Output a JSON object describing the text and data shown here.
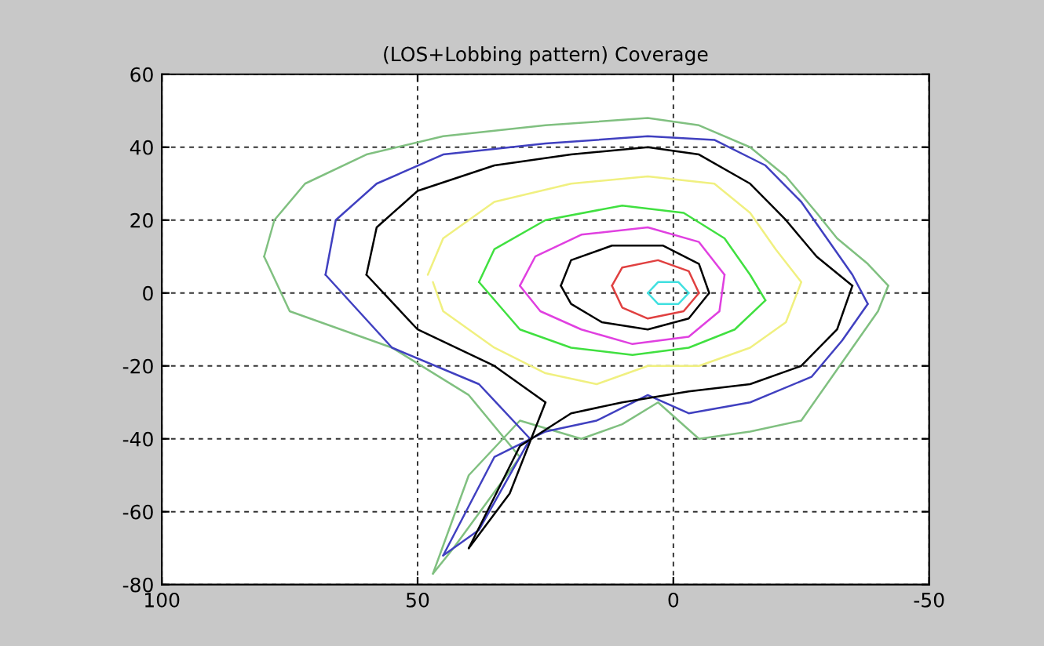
{
  "chart_data": {
    "type": "line",
    "title": "(LOS+Lobbing pattern) Coverage",
    "xlim": [
      100,
      -50
    ],
    "ylim": [
      -80,
      60
    ],
    "xticks": [
      100,
      50,
      0,
      -50
    ],
    "yticks": [
      -80,
      -60,
      -40,
      -20,
      0,
      20,
      40,
      60
    ],
    "grid": true,
    "line_style": "solid",
    "marker": "none",
    "series": [
      {
        "color": "#80c080",
        "x": [
          80,
          78,
          72,
          60,
          45,
          25,
          5,
          -5,
          -15,
          -22,
          -28,
          -32,
          -38,
          -42
        ],
        "values": [
          10,
          20,
          30,
          38,
          43,
          46,
          48,
          46,
          40,
          32,
          22,
          15,
          8,
          2
        ]
      },
      {
        "color": "#80c080",
        "x": [
          -42,
          -40,
          -35,
          -30,
          -25,
          -15,
          -5,
          3,
          10,
          18,
          30,
          40,
          47
        ],
        "values": [
          2,
          -5,
          -15,
          -25,
          -35,
          -38,
          -40,
          -30,
          -36,
          -40,
          -35,
          -50,
          -77
        ]
      },
      {
        "color": "#80c080",
        "x": [
          47,
          43,
          30
        ],
        "values": [
          -77,
          -70,
          -45
        ]
      },
      {
        "color": "#80c080",
        "x": [
          30,
          40,
          55,
          75,
          80
        ],
        "values": [
          -45,
          -28,
          -15,
          -5,
          10
        ]
      },
      {
        "color": "#4040c0",
        "x": [
          68,
          66,
          58,
          45,
          25,
          5,
          -8,
          -18,
          -25,
          -30,
          -35,
          -38
        ],
        "values": [
          5,
          20,
          30,
          38,
          41,
          43,
          42,
          35,
          25,
          15,
          5,
          -3
        ]
      },
      {
        "color": "#4040c0",
        "x": [
          -38,
          -33,
          -27,
          -15,
          -3,
          5,
          15,
          25,
          35,
          45
        ],
        "values": [
          -3,
          -13,
          -23,
          -30,
          -33,
          -28,
          -35,
          -38,
          -45,
          -72
        ]
      },
      {
        "color": "#4040c0",
        "x": [
          45,
          38,
          28
        ],
        "values": [
          -72,
          -65,
          -40
        ]
      },
      {
        "color": "#4040c0",
        "x": [
          28,
          38,
          55,
          68
        ],
        "values": [
          -40,
          -25,
          -15,
          5
        ]
      },
      {
        "color": "#000000",
        "x": [
          60,
          58,
          50,
          35,
          20,
          5,
          -5,
          -15,
          -22,
          -28,
          -35
        ],
        "values": [
          5,
          18,
          28,
          35,
          38,
          40,
          38,
          30,
          20,
          10,
          2
        ]
      },
      {
        "color": "#000000",
        "x": [
          -35,
          -32,
          -25,
          -15,
          -3,
          10,
          20,
          30,
          40
        ],
        "values": [
          2,
          -10,
          -20,
          -25,
          -27,
          -30,
          -33,
          -42,
          -70
        ]
      },
      {
        "color": "#000000",
        "x": [
          40,
          32,
          25
        ],
        "values": [
          -70,
          -55,
          -30
        ]
      },
      {
        "color": "#000000",
        "x": [
          25,
          35,
          50,
          60
        ],
        "values": [
          -30,
          -20,
          -10,
          5
        ]
      },
      {
        "color": "#f0f080",
        "x": [
          48,
          45,
          35,
          20,
          5,
          -8,
          -15,
          -20,
          -25
        ],
        "values": [
          5,
          15,
          25,
          30,
          32,
          30,
          22,
          12,
          3
        ]
      },
      {
        "color": "#f0f080",
        "x": [
          -25,
          -22,
          -15,
          -5,
          5,
          15,
          25,
          35,
          45,
          47
        ],
        "values": [
          3,
          -8,
          -15,
          -20,
          -20,
          -25,
          -22,
          -15,
          -5,
          3
        ]
      },
      {
        "color": "#40e040",
        "x": [
          38,
          35,
          25,
          10,
          -2,
          -10,
          -15,
          -18
        ],
        "values": [
          3,
          12,
          20,
          24,
          22,
          15,
          5,
          -2
        ]
      },
      {
        "color": "#40e040",
        "x": [
          -18,
          -12,
          -3,
          8,
          20,
          30,
          38
        ],
        "values": [
          -2,
          -10,
          -15,
          -17,
          -15,
          -10,
          3
        ]
      },
      {
        "color": "#e040e0",
        "x": [
          30,
          27,
          18,
          5,
          -5,
          -10
        ],
        "values": [
          2,
          10,
          16,
          18,
          14,
          5
        ]
      },
      {
        "color": "#e040e0",
        "x": [
          -10,
          -9,
          -3,
          8,
          18,
          26,
          30
        ],
        "values": [
          5,
          -5,
          -12,
          -14,
          -10,
          -5,
          2
        ]
      },
      {
        "color": "#000000",
        "x": [
          22,
          20,
          12,
          2,
          -5,
          -7
        ],
        "values": [
          2,
          9,
          13,
          13,
          8,
          0
        ]
      },
      {
        "color": "#000000",
        "x": [
          -7,
          -3,
          5,
          14,
          20,
          22
        ],
        "values": [
          0,
          -7,
          -10,
          -8,
          -3,
          2
        ]
      },
      {
        "color": "#e04040",
        "x": [
          12,
          10,
          3,
          -3,
          -5
        ],
        "values": [
          2,
          7,
          9,
          6,
          0
        ]
      },
      {
        "color": "#e04040",
        "x": [
          -5,
          -2,
          5,
          10,
          12
        ],
        "values": [
          0,
          -5,
          -7,
          -4,
          2
        ]
      },
      {
        "color": "#40e0e0",
        "x": [
          5,
          3,
          -1,
          -3
        ],
        "values": [
          0,
          3,
          3,
          0
        ]
      },
      {
        "color": "#40e0e0",
        "x": [
          -3,
          -1,
          3,
          5
        ],
        "values": [
          0,
          -3,
          -3,
          0
        ]
      }
    ]
  }
}
